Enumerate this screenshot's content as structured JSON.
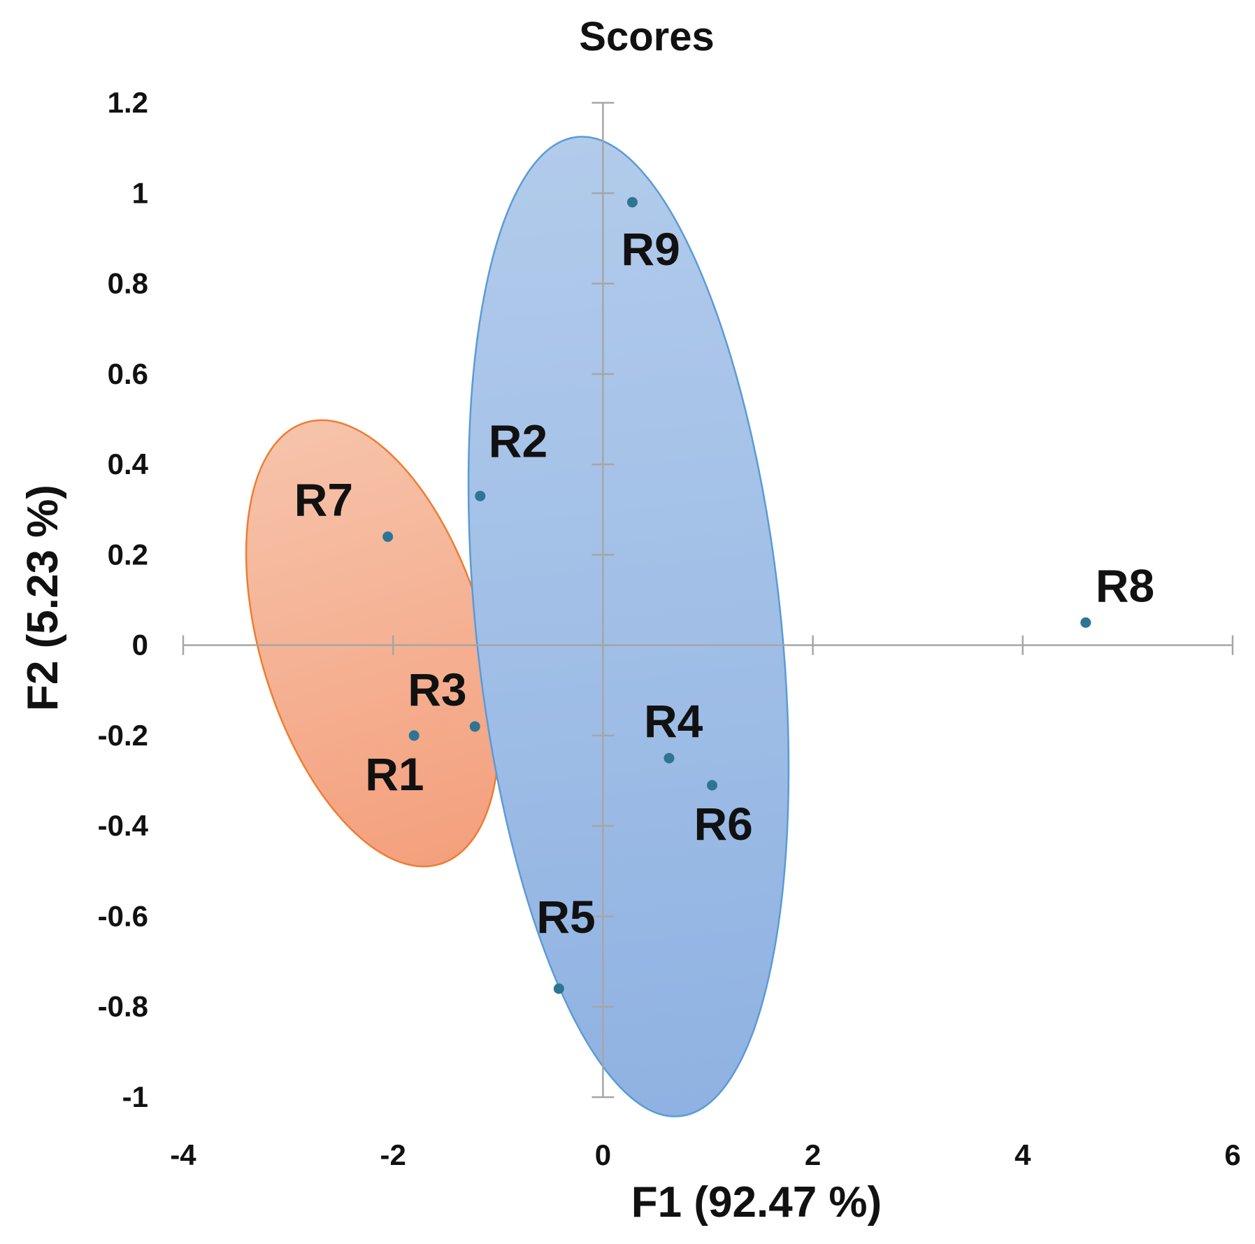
{
  "chart_data": {
    "type": "scatter",
    "title": "Scores",
    "xlabel": "F1 (92.47 %)",
    "ylabel": "F2 (5.23 %)",
    "xlim": [
      -4,
      6
    ],
    "ylim": [
      -1,
      1.2
    ],
    "x_ticks": [
      -4,
      -2,
      0,
      2,
      4,
      6
    ],
    "y_ticks": [
      -1,
      -0.8,
      -0.6,
      -0.4,
      -0.2,
      0,
      0.2,
      0.4,
      0.6,
      0.8,
      1,
      1.2
    ],
    "grid": false,
    "point_color": "#2e7593",
    "points": [
      {
        "label": "R1",
        "x": -1.8,
        "y": -0.2
      },
      {
        "label": "R2",
        "x": -1.17,
        "y": 0.33
      },
      {
        "label": "R3",
        "x": -1.22,
        "y": -0.18
      },
      {
        "label": "R4",
        "x": 0.63,
        "y": -0.25
      },
      {
        "label": "R5",
        "x": -0.42,
        "y": -0.76
      },
      {
        "label": "R6",
        "x": 1.04,
        "y": -0.31
      },
      {
        "label": "R7",
        "x": -2.05,
        "y": 0.24
      },
      {
        "label": "R8",
        "x": 4.6,
        "y": 0.05
      },
      {
        "label": "R9",
        "x": 0.28,
        "y": 0.98
      }
    ],
    "groups": [
      {
        "members": [
          "R1",
          "R3",
          "R7"
        ],
        "fill": "#f4a582",
        "stroke": "#ed7d31"
      },
      {
        "members": [
          "R2",
          "R4",
          "R5",
          "R6",
          "R9"
        ],
        "fill": "#9dbbe3",
        "stroke": "#5b9bd5"
      }
    ]
  }
}
